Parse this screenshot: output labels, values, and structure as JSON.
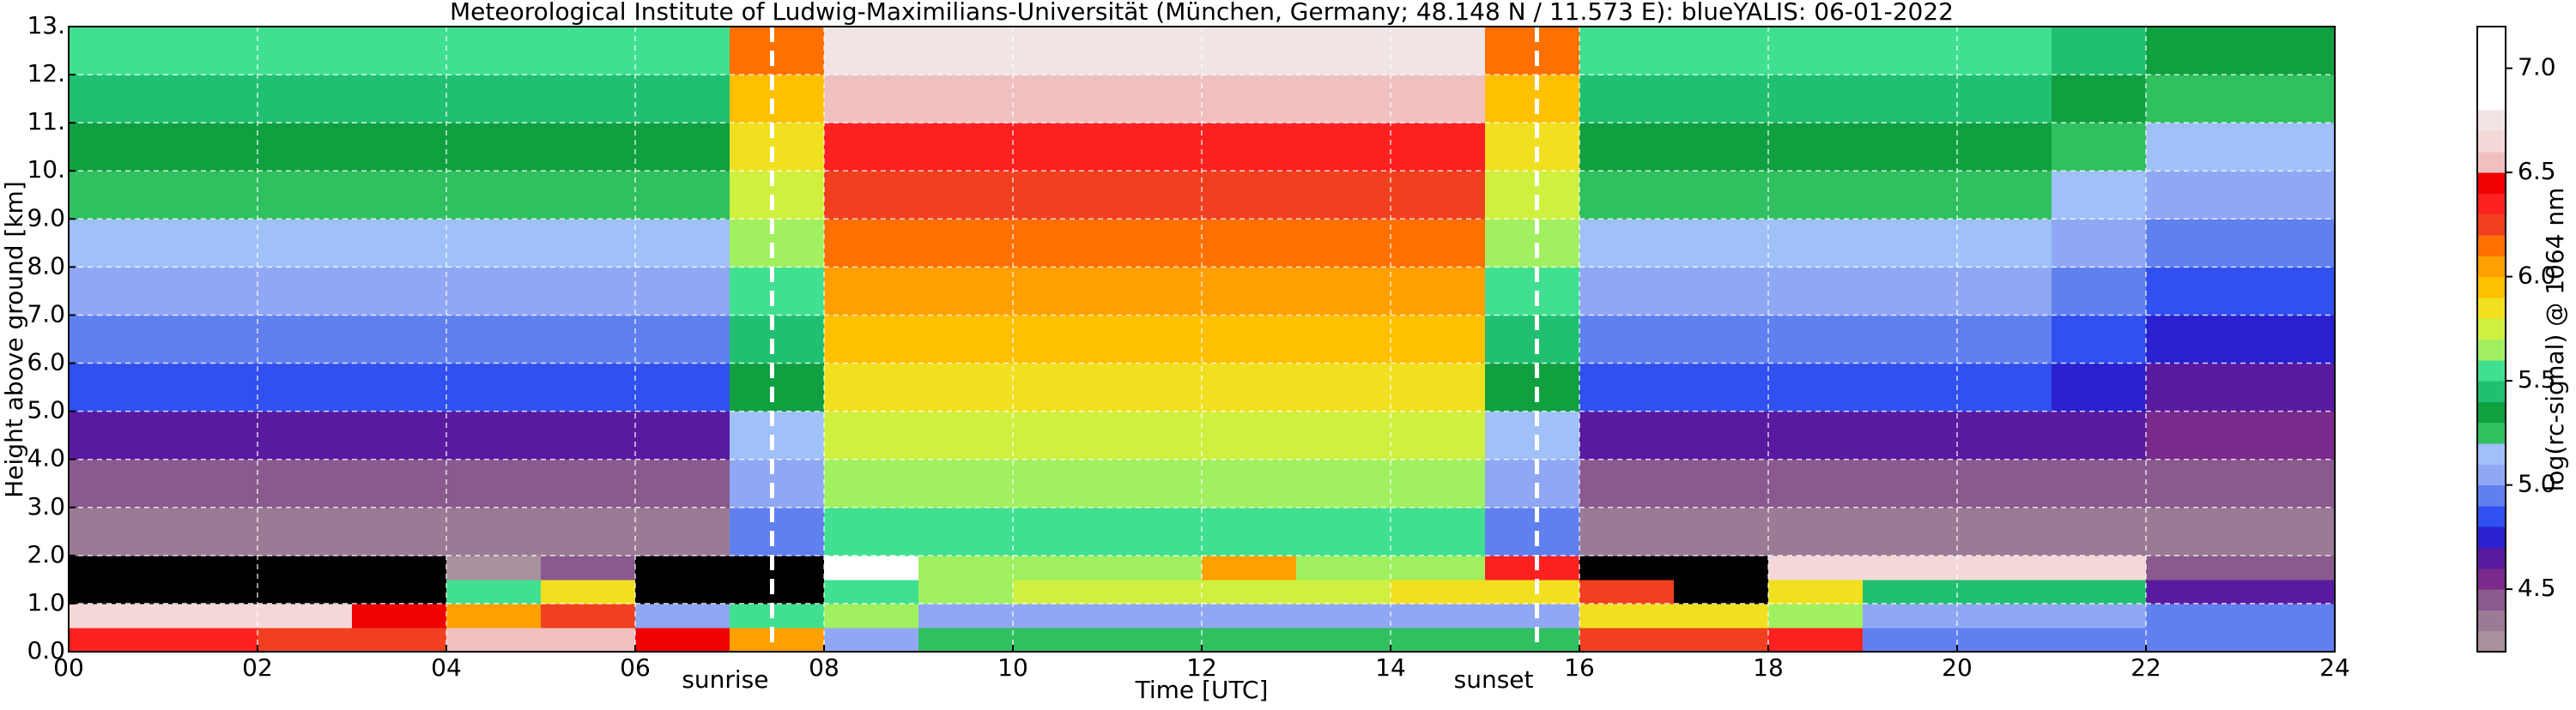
{
  "chart_data": {
    "type": "heatmap",
    "title": "Meteorological Institute of Ludwig-Maximilians-Universität (München, Germany; 48.148 N / 11.573 E):    blueYALIS: 06-01-2022",
    "x_label": "Time [UTC]",
    "y_label": "Height above ground [km]",
    "colorbar_label": "log(rc-signal) @ 1064 nm",
    "xlim": [
      0,
      24
    ],
    "ylim": [
      0,
      13
    ],
    "xticks": [
      {
        "value": 0,
        "label": "00"
      },
      {
        "value": 2,
        "label": "02"
      },
      {
        "value": 4,
        "label": "04"
      },
      {
        "value": 6,
        "label": "06"
      },
      {
        "value": 8,
        "label": "08"
      },
      10,
      12,
      14,
      16,
      18,
      20,
      22,
      24
    ],
    "yticks": [
      {
        "value": 0,
        "label": "0.0"
      },
      {
        "value": 1,
        "label": "1.0"
      },
      {
        "value": 2,
        "label": "2.0"
      },
      {
        "value": 3,
        "label": "3.0"
      },
      {
        "value": 4,
        "label": "4.0"
      },
      {
        "value": 5,
        "label": "5.0"
      },
      {
        "value": 6,
        "label": "6.0"
      },
      {
        "value": 7,
        "label": "7.0"
      },
      {
        "value": 8,
        "label": "8.0"
      },
      {
        "value": 9,
        "label": "9.0"
      },
      {
        "value": 10,
        "label": "10."
      },
      {
        "value": 11,
        "label": "11."
      },
      {
        "value": 12,
        "label": "12."
      },
      {
        "value": 13,
        "label": "13."
      }
    ],
    "grid": true,
    "grid_color": "#ffffff",
    "x_edges": [
      0,
      1,
      2,
      3,
      4,
      5,
      6,
      7,
      8,
      9,
      10,
      11,
      12,
      13,
      14,
      15,
      16,
      17,
      18,
      19,
      20,
      21,
      22,
      23,
      24
    ],
    "y_edges": [
      0,
      0.5,
      1,
      1.5,
      2,
      3,
      4,
      5,
      6,
      7,
      8,
      9,
      10,
      11,
      12,
      13
    ],
    "values": [
      [
        6.3,
        6.3,
        6.2,
        6.2,
        6.5,
        6.5,
        6.4,
        6.0,
        5.0,
        5.2,
        5.2,
        5.2,
        5.2,
        5.2,
        5.2,
        5.2,
        6.2,
        6.2,
        6.3,
        4.9,
        4.9,
        4.9,
        4.9,
        4.9
      ],
      [
        6.6,
        6.6,
        6.6,
        6.4,
        6.0,
        6.2,
        5.0,
        5.5,
        5.6,
        5.0,
        5.0,
        5.0,
        5.0,
        5.0,
        5.0,
        5.0,
        5.8,
        5.8,
        5.6,
        5.0,
        5.0,
        5.0,
        4.9,
        4.9
      ],
      [
        4.0,
        4.0,
        4.0,
        4.0,
        5.5,
        5.8,
        4.0,
        4.0,
        5.5,
        5.6,
        5.7,
        5.7,
        5.7,
        5.7,
        5.8,
        5.8,
        6.2,
        4.0,
        5.8,
        5.4,
        5.4,
        5.4,
        4.6,
        4.6
      ],
      [
        4.0,
        4.0,
        4.0,
        4.0,
        4.2,
        4.4,
        4.0,
        4.0,
        6.8,
        5.6,
        5.6,
        5.6,
        6.0,
        5.6,
        5.6,
        6.3,
        4.0,
        4.0,
        6.6,
        6.6,
        6.6,
        6.6,
        4.4,
        4.4
      ],
      [
        4.3,
        4.3,
        4.3,
        4.3,
        4.3,
        4.3,
        4.3,
        4.9,
        5.5,
        5.5,
        5.5,
        5.5,
        5.5,
        5.5,
        5.5,
        4.9,
        4.3,
        4.3,
        4.3,
        4.3,
        4.3,
        4.3,
        4.3,
        4.3
      ],
      [
        4.4,
        4.4,
        4.4,
        4.4,
        4.4,
        4.4,
        4.4,
        5.0,
        5.6,
        5.6,
        5.6,
        5.6,
        5.6,
        5.6,
        5.6,
        5.0,
        4.4,
        4.4,
        4.4,
        4.4,
        4.4,
        4.4,
        4.4,
        4.4
      ],
      [
        4.6,
        4.6,
        4.6,
        4.6,
        4.6,
        4.6,
        4.6,
        5.1,
        5.7,
        5.7,
        5.7,
        5.7,
        5.7,
        5.7,
        5.7,
        5.1,
        4.6,
        4.6,
        4.6,
        4.6,
        4.6,
        4.6,
        4.5,
        4.5
      ],
      [
        4.8,
        4.8,
        4.8,
        4.8,
        4.8,
        4.8,
        4.8,
        5.3,
        5.8,
        5.8,
        5.8,
        5.8,
        5.8,
        5.8,
        5.8,
        5.3,
        4.8,
        4.8,
        4.8,
        4.8,
        4.8,
        4.7,
        4.6,
        4.6
      ],
      [
        4.9,
        4.9,
        4.9,
        4.9,
        4.9,
        4.9,
        4.9,
        5.4,
        5.9,
        5.9,
        5.9,
        5.9,
        5.9,
        5.9,
        5.9,
        5.4,
        4.9,
        4.9,
        4.9,
        4.9,
        4.9,
        4.8,
        4.7,
        4.7
      ],
      [
        5.0,
        5.0,
        5.0,
        5.0,
        5.0,
        5.0,
        5.0,
        5.5,
        6.0,
        6.0,
        6.0,
        6.0,
        6.0,
        6.0,
        6.0,
        5.5,
        5.0,
        5.0,
        5.0,
        5.0,
        5.0,
        4.9,
        4.8,
        4.8
      ],
      [
        5.1,
        5.1,
        5.1,
        5.1,
        5.1,
        5.1,
        5.1,
        5.6,
        6.1,
        6.1,
        6.1,
        6.1,
        6.1,
        6.1,
        6.1,
        5.6,
        5.1,
        5.1,
        5.1,
        5.1,
        5.1,
        5.0,
        4.9,
        4.9
      ],
      [
        5.2,
        5.2,
        5.2,
        5.2,
        5.2,
        5.2,
        5.2,
        5.7,
        6.2,
        6.2,
        6.2,
        6.2,
        6.2,
        6.2,
        6.2,
        5.7,
        5.2,
        5.2,
        5.2,
        5.2,
        5.2,
        5.1,
        5.0,
        5.0
      ],
      [
        5.3,
        5.3,
        5.3,
        5.3,
        5.3,
        5.3,
        5.3,
        5.8,
        6.3,
        6.3,
        6.3,
        6.3,
        6.3,
        6.3,
        6.3,
        5.8,
        5.3,
        5.3,
        5.3,
        5.3,
        5.3,
        5.2,
        5.1,
        5.1
      ],
      [
        5.4,
        5.4,
        5.4,
        5.4,
        5.4,
        5.4,
        5.4,
        5.9,
        6.5,
        6.5,
        6.5,
        6.5,
        6.5,
        6.5,
        6.5,
        5.9,
        5.4,
        5.4,
        5.4,
        5.4,
        5.4,
        5.3,
        5.2,
        5.2
      ],
      [
        5.5,
        5.5,
        5.5,
        5.5,
        5.5,
        5.5,
        5.5,
        6.1,
        6.7,
        6.7,
        6.7,
        6.7,
        6.7,
        6.7,
        6.7,
        6.1,
        5.5,
        5.5,
        5.5,
        5.5,
        5.5,
        5.4,
        5.3,
        5.3
      ]
    ],
    "clim": [
      4.2,
      7.2
    ],
    "cticks": [
      4.5,
      {
        "value": 5,
        "label": "5.0"
      },
      5.5,
      {
        "value": 6,
        "label": "6.0"
      },
      6.5,
      {
        "value": 7,
        "label": "7.0"
      }
    ],
    "color_bounds": [
      4.2,
      4.3,
      4.4,
      4.5,
      4.6,
      4.7,
      4.8,
      4.9,
      5.0,
      5.1,
      5.2,
      5.3,
      5.4,
      5.5,
      5.6,
      5.7,
      5.8,
      5.9,
      6.0,
      6.1,
      6.2,
      6.3,
      6.4,
      6.5,
      6.6,
      6.7,
      6.8,
      6.9,
      7.0,
      7.1,
      7.2
    ],
    "colors": [
      "#a8909c",
      "#9a7a94",
      "#8a5a8e",
      "#7a2a8a",
      "#5a1aa0",
      "#2a20d0",
      "#3050f0",
      "#6080f0",
      "#90a8f4",
      "#a0c0f8",
      "#30c060",
      "#10a040",
      "#20c070",
      "#40e090",
      "#a0f060",
      "#d0f040",
      "#f0e020",
      "#ffc000",
      "#ffa000",
      "#ff7000",
      "#f04020",
      "#ff2020",
      "#f00000",
      "#f0c0c0",
      "#f4d8d8",
      "#f0e4e4",
      "#ffffff",
      "#ffffff",
      "#ffffff",
      "#ffffff"
    ],
    "under_color": "#000000",
    "annotations": [
      {
        "text": "sunrise",
        "x": 7.45
      },
      {
        "text": "sunset",
        "x": 15.55
      }
    ]
  }
}
